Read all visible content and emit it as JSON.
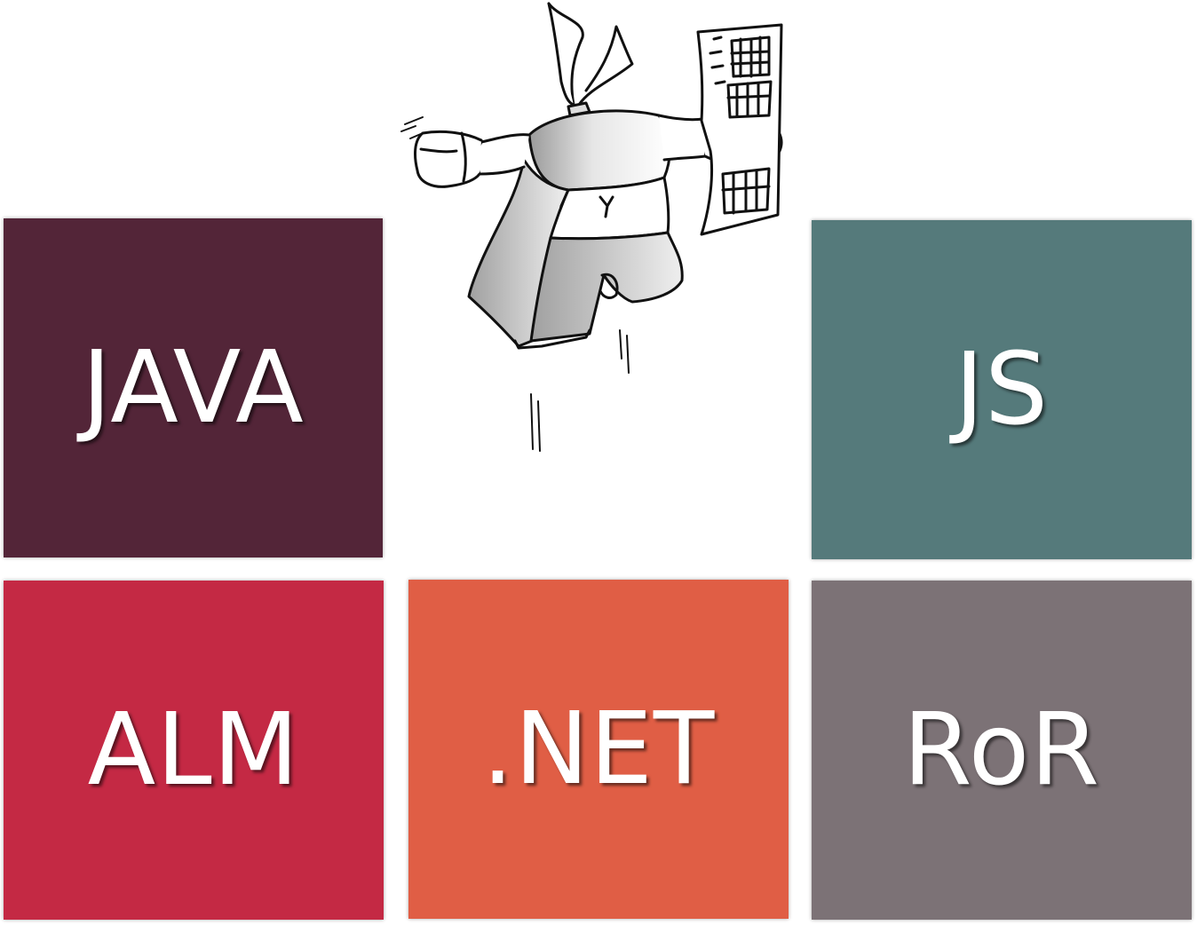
{
  "tiles": [
    {
      "label": "JAVA",
      "color": "#532538"
    },
    {
      "label": "JS",
      "color": "#557a7b"
    },
    {
      "label": "ALM",
      "color": "#c42944"
    },
    {
      "label": ".NET",
      "color": "#e05e45"
    },
    {
      "label": "RoR",
      "color": "#7c7276"
    }
  ],
  "illustration": {
    "icon": "jumping-developer-with-keyboard-illustration"
  }
}
